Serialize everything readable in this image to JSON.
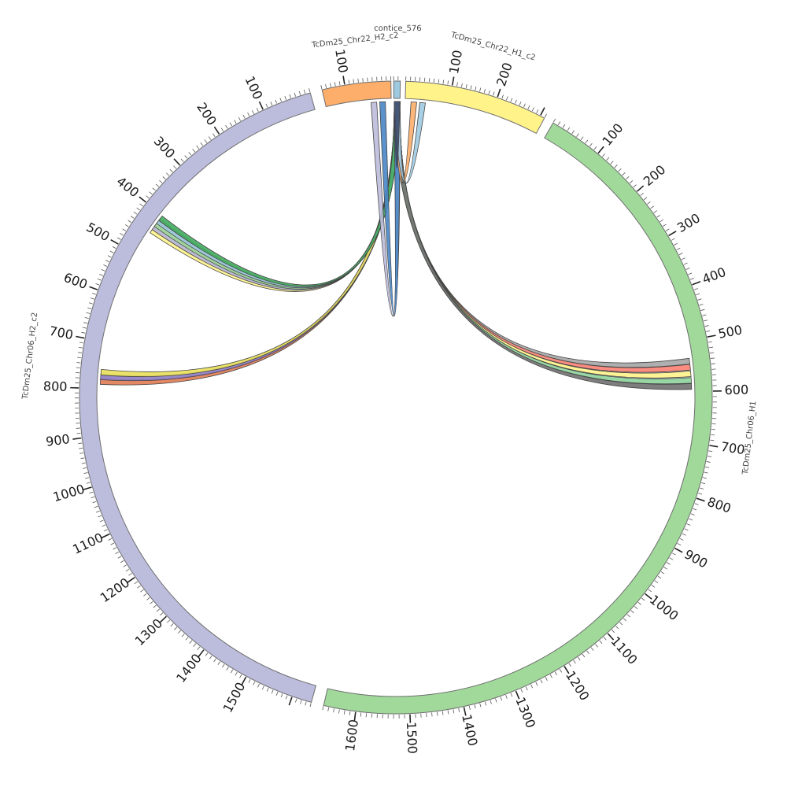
{
  "chromosomes": [
    {
      "id": "chr06_h2",
      "name": "TcDm25_Chr06_H2_c2",
      "length": 1640,
      "color": "#bcbddc",
      "orient": -1,
      "tick_labels": [
        "100",
        "200",
        "300",
        "400",
        "500",
        "600",
        "700",
        "800",
        "900",
        "1000",
        "1100",
        "1200",
        "1300",
        "1400",
        "1500"
      ]
    },
    {
      "id": "chr22_h2",
      "name": "TcDm25_Chr22_H2_c2",
      "length": 150,
      "color": "#fdae6b",
      "orient": -1,
      "tick_labels": [
        "100"
      ]
    },
    {
      "id": "contig",
      "name": "contice_576",
      "length": 15,
      "color": "#9ecae1",
      "orient": 1,
      "tick_labels": []
    },
    {
      "id": "chr22_h1",
      "name": "TcDm25_Chr22_H1_c2",
      "length": 310,
      "color": "#fff38a",
      "orient": 1,
      "tick_labels": [
        "100",
        "200"
      ]
    },
    {
      "id": "chr06_h1",
      "name": "TcDm25_Chr06_H1",
      "length": 1660,
      "color": "#a1d99b",
      "orient": 1,
      "tick_labels": [
        "100",
        "200",
        "300",
        "400",
        "500",
        "600",
        "700",
        "800",
        "900",
        "1000",
        "1100",
        "1200",
        "1300",
        "1400",
        "1500",
        "1600"
      ]
    }
  ],
  "links": [
    {
      "from": "contig",
      "from_pos": 8,
      "to": "chr06_h1",
      "to_pos": 540,
      "color": "#a6a6a6"
    },
    {
      "from": "contig",
      "from_pos": 8,
      "to": "chr06_h1",
      "to_pos": 552,
      "color": "#fb8072"
    },
    {
      "from": "contig",
      "from_pos": 8,
      "to": "chr06_h1",
      "to_pos": 565,
      "color": "#fff38a"
    },
    {
      "from": "contig",
      "from_pos": 8,
      "to": "chr06_h1",
      "to_pos": 578,
      "color": "#8dd39b"
    },
    {
      "from": "contig",
      "from_pos": 8,
      "to": "chr06_h1",
      "to_pos": 590,
      "color": "#707070"
    },
    {
      "from": "contig",
      "from_pos": 8,
      "to": "chr06_h2",
      "to_pos": 785,
      "color": "#e07b52"
    },
    {
      "from": "contig",
      "from_pos": 8,
      "to": "chr06_h2",
      "to_pos": 775,
      "color": "#8e7cc3"
    },
    {
      "from": "contig",
      "from_pos": 8,
      "to": "chr06_h2",
      "to_pos": 765,
      "color": "#e8df5a"
    },
    {
      "from": "contig",
      "from_pos": 8,
      "to": "chr06_h2",
      "to_pos": 440,
      "color": "#fff38a"
    },
    {
      "from": "contig",
      "from_pos": 8,
      "to": "chr06_h2",
      "to_pos": 432,
      "color": "#bcbddc"
    },
    {
      "from": "contig",
      "from_pos": 8,
      "to": "chr06_h2",
      "to_pos": 424,
      "color": "#a1d99b"
    },
    {
      "from": "contig",
      "from_pos": 8,
      "to": "chr06_h2",
      "to_pos": 416,
      "color": "#9ecae1"
    },
    {
      "from": "contig",
      "from_pos": 8,
      "to": "chr06_h2",
      "to_pos": 408,
      "color": "#41ab5d"
    },
    {
      "from": "contig",
      "from_pos": 8,
      "to": "chr22_h2",
      "to_pos": 40,
      "color": "#bcbddc"
    },
    {
      "from": "contig",
      "from_pos": 8,
      "to": "chr22_h2",
      "to_pos": 20,
      "color": "#4a86c5"
    },
    {
      "from": "contig",
      "from_pos": 8,
      "to": "chr22_h1",
      "to_pos": 20,
      "color": "#fdae6b"
    },
    {
      "from": "contig",
      "from_pos": 8,
      "to": "chr22_h1",
      "to_pos": 40,
      "color": "#9ecae1"
    },
    {
      "from": "contig",
      "from_pos": 8,
      "to": "contig",
      "to_pos": 8,
      "color": "#3d4a6b"
    }
  ]
}
